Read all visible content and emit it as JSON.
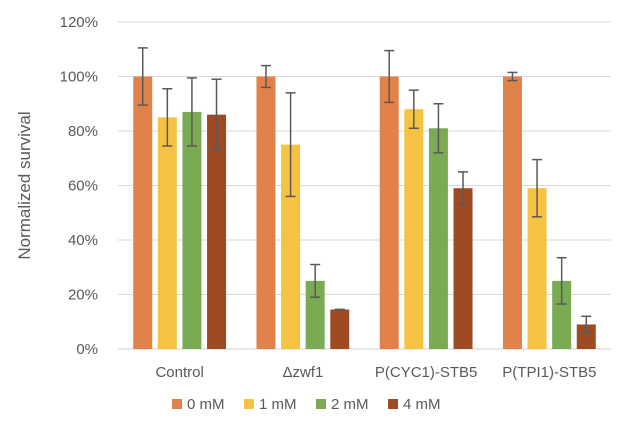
{
  "chart_data": {
    "type": "bar",
    "title": "",
    "xlabel": "",
    "ylabel": "Normalized survival",
    "ylim": [
      0,
      120
    ],
    "yticks": [
      0,
      20,
      40,
      60,
      80,
      100,
      120
    ],
    "ytick_labels": [
      "0%",
      "20%",
      "40%",
      "60%",
      "80%",
      "100%",
      "120%"
    ],
    "grid": true,
    "legend_position": "bottom",
    "categories": [
      "Control",
      "Δzwf1",
      "P(CYC1)-STB5",
      "P(TPI1)-STB5"
    ],
    "series": [
      {
        "name": "0 mM",
        "color": "#E0824A",
        "values": [
          100,
          100,
          100,
          100
        ],
        "error": [
          10.5,
          4,
          9.5,
          1.5
        ]
      },
      {
        "name": "1 mM",
        "color": "#F5C242",
        "values": [
          85,
          75,
          88,
          59
        ],
        "error": [
          10.5,
          19,
          7,
          10.5
        ]
      },
      {
        "name": "2 mM",
        "color": "#7AAB53",
        "values": [
          87,
          25,
          81,
          25
        ],
        "error": [
          12.5,
          6,
          9,
          8.5
        ]
      },
      {
        "name": "4 mM",
        "color": "#9E4A22",
        "values": [
          86,
          14.5,
          59,
          9
        ],
        "error": [
          13,
          0,
          6,
          3
        ]
      }
    ]
  }
}
